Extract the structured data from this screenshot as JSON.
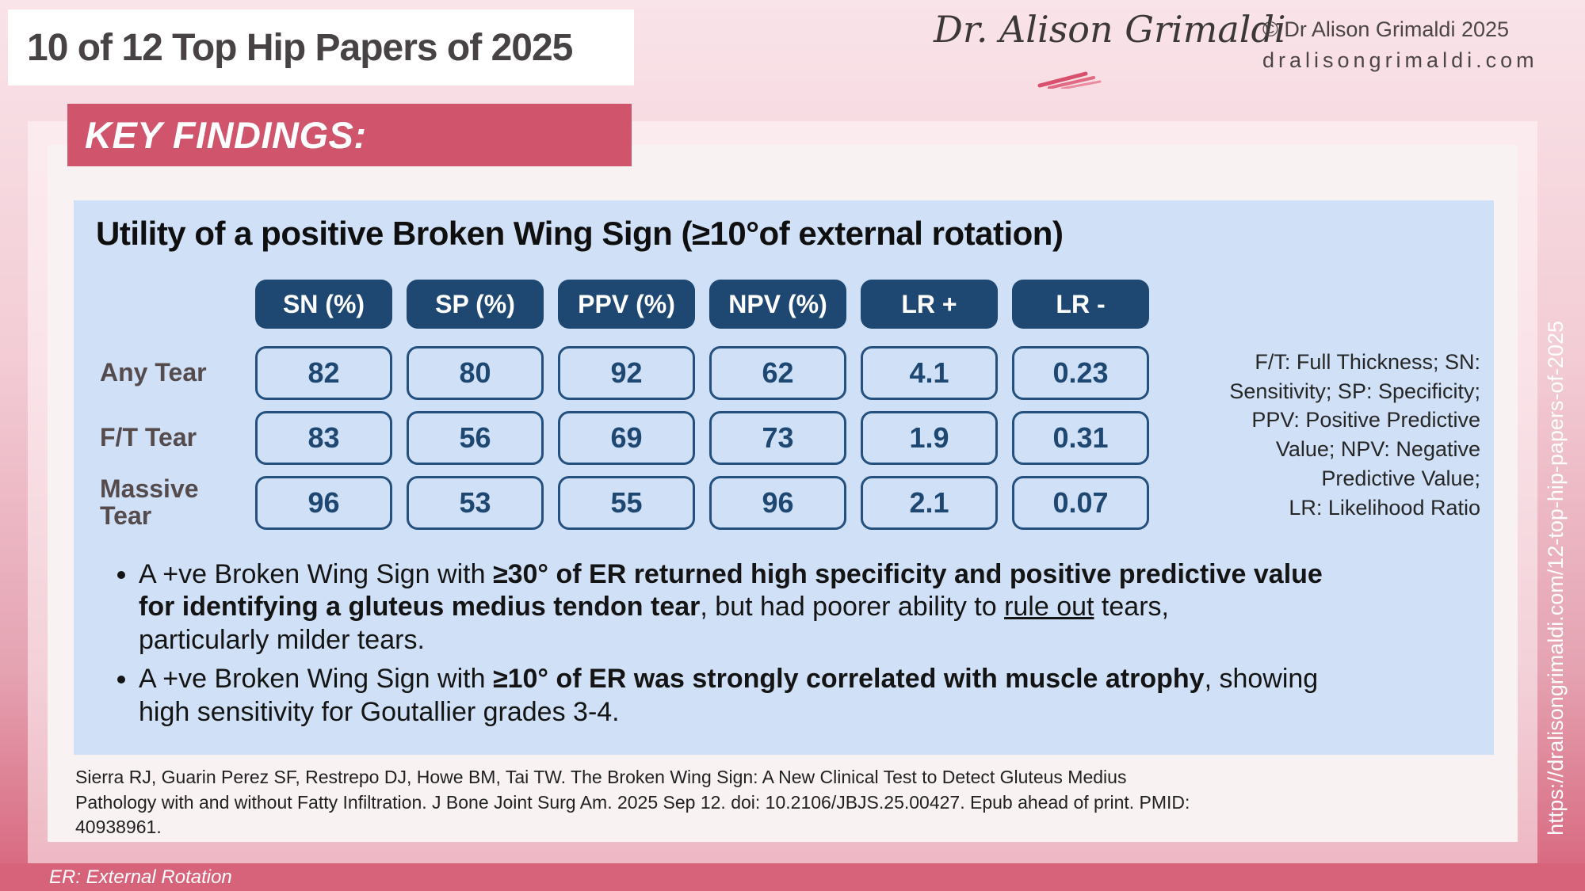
{
  "header": {
    "title": "10 of 12 Top Hip Papers of 2025",
    "logo_script": "Dr. Alison Grimaldi",
    "copyright": "© Dr Alison Grimaldi 2025",
    "website": "dralisongrimaldi.com"
  },
  "banner": {
    "label": "KEY FINDINGS:"
  },
  "panel": {
    "title": "Utility of a positive Broken Wing Sign (≥10°of external rotation)",
    "legend_lines": [
      "F/T: Full Thickness; SN:",
      "Sensitivity; SP: Specificity;",
      "PPV: Positive Predictive",
      "Value; NPV: Negative",
      "Predictive Value;",
      "LR: Likelihood Ratio"
    ]
  },
  "table": {
    "columns": [
      "SN (%)",
      "SP (%)",
      "PPV (%)",
      "NPV (%)",
      "LR +",
      "LR -"
    ],
    "rows": [
      {
        "label": "Any Tear",
        "values": [
          "82",
          "80",
          "92",
          "62",
          "4.1",
          "0.23"
        ]
      },
      {
        "label": "F/T Tear",
        "values": [
          "83",
          "56",
          "69",
          "73",
          "1.9",
          "0.31"
        ]
      },
      {
        "label": "Massive Tear",
        "values": [
          "96",
          "53",
          "55",
          "96",
          "2.1",
          "0.07"
        ]
      }
    ]
  },
  "bullets": [
    {
      "segments": [
        {
          "text": "A +ve Broken Wing Sign with "
        },
        {
          "text": "≥30° of ER returned high specificity and positive predictive value",
          "bold": true
        },
        {
          "br": true
        },
        {
          "text": "for identifying a gluteus medius tendon tear",
          "bold": true
        },
        {
          "text": ", but had poorer ability to "
        },
        {
          "text": "rule out",
          "underline": true
        },
        {
          "text": " tears,"
        },
        {
          "br": true
        },
        {
          "text": "particularly milder tears."
        }
      ]
    },
    {
      "segments": [
        {
          "text": "A +ve Broken Wing Sign with "
        },
        {
          "text": "≥10° of ER was strongly correlated with muscle atrophy",
          "bold": true
        },
        {
          "text": ", showing"
        },
        {
          "br": true
        },
        {
          "text": "high sensitivity for Goutallier grades 3-4."
        }
      ]
    }
  ],
  "citation_lines": [
    "Sierra RJ, Guarin Perez SF, Restrepo DJ, Howe BM, Tai TW. The Broken Wing Sign: A New Clinical Test to Detect Gluteus Medius",
    "Pathology with and without Fatty Infiltration. J Bone Joint Surg Am. 2025 Sep 12. doi: 10.2106/JBJS.25.00427. Epub ahead of print. PMID:",
    "40938961."
  ],
  "footer": {
    "note": "ER: External Rotation"
  },
  "sidebar": {
    "url": "https://dralisongrimaldi.com/12-top-hip-papers-of-2025"
  },
  "colors": {
    "accent_rose": "#d0556c",
    "bar_rose": "#d7637b",
    "navy": "#1e4872",
    "panel_blue": "#d0e0f6",
    "card": "#f8f2f3"
  }
}
